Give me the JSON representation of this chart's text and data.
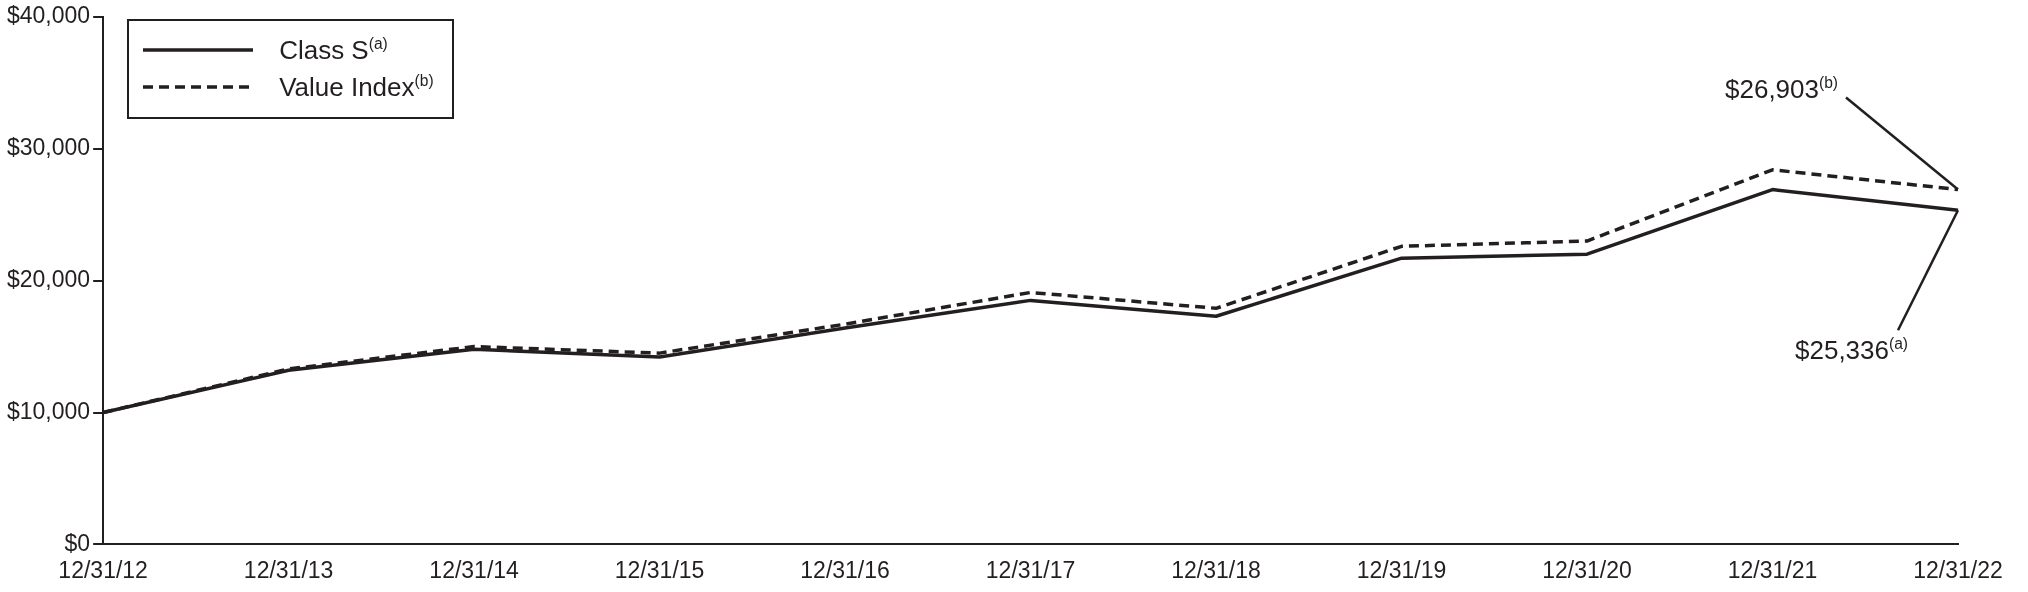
{
  "chart_data": {
    "type": "line",
    "categories": [
      "12/31/12",
      "12/31/13",
      "12/31/14",
      "12/31/15",
      "12/31/16",
      "12/31/17",
      "12/31/18",
      "12/31/19",
      "12/31/20",
      "12/31/21",
      "12/31/22"
    ],
    "series": [
      {
        "name": "Class S$^{(a)}$",
        "color": "#231f20",
        "line_style": "solid",
        "values": [
          10000,
          13200,
          14800,
          14200,
          16400,
          18500,
          17300,
          21700,
          22000,
          26900,
          25336
        ]
      },
      {
        "name": "Value Index$^{(b)}$",
        "color": "#231f20",
        "line_style": "dashed",
        "values": [
          10000,
          13300,
          15000,
          14500,
          16700,
          19100,
          17900,
          22600,
          23000,
          28400,
          26903
        ]
      }
    ],
    "ylim": [
      0,
      40000
    ],
    "yticks": [
      {
        "value": 0,
        "label": "$0"
      },
      {
        "value": 10000,
        "label": "$10,000"
      },
      {
        "value": 20000,
        "label": "$20,000"
      },
      {
        "value": 30000,
        "label": "$30,000"
      },
      {
        "value": 40000,
        "label": "$40,000"
      }
    ],
    "grid": false,
    "legend": "top left",
    "marker": "none",
    "annotations": [
      {
        "text": "$26,903$^{(b)}$",
        "x": "12/31/22",
        "y": 26903
      },
      {
        "text": "$25,336$^{(a)}$",
        "x": "12/31/22",
        "y": 25336
      }
    ]
  }
}
